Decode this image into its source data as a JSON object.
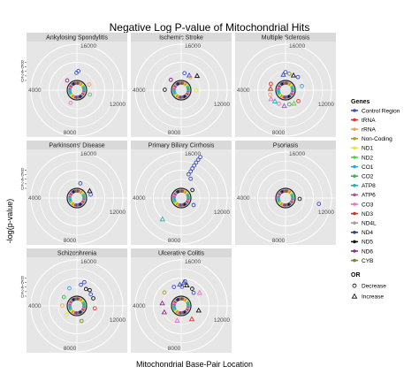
{
  "chart_data": {
    "type": "scatter",
    "coordinate_system": "polar (faceted)",
    "title": "Negative Log P-value of Mitochondrial Hits",
    "xlabel": "Mitochondrial Base-Pair Location",
    "ylabel": "-log(p-value)",
    "y_ticks": [
      0,
      2,
      4,
      6,
      8
    ],
    "ring_labels": [
      "16000",
      "4000",
      "12000",
      "8000"
    ],
    "grid": true,
    "legend_position": "right",
    "gene_legend": {
      "title": "Genes",
      "items": [
        {
          "label": "Control Region",
          "color": "#3b4cc0"
        },
        {
          "label": "tRNA",
          "color": "#e6341f"
        },
        {
          "label": "rRNA",
          "color": "#f5a35a"
        },
        {
          "label": "Non-Coding",
          "color": "#a6a028"
        },
        {
          "label": "ND1",
          "color": "#f0e030"
        },
        {
          "label": "ND2",
          "color": "#5ec94c"
        },
        {
          "label": "CO1",
          "color": "#2aa4e8"
        },
        {
          "label": "CO2",
          "color": "#3cb44b"
        },
        {
          "label": "ATP8",
          "color": "#1fb6b0"
        },
        {
          "label": "ATP6",
          "color": "#9b59b6"
        },
        {
          "label": "CO3",
          "color": "#f06ec8"
        },
        {
          "label": "ND3",
          "color": "#c0392b"
        },
        {
          "label": "ND4L",
          "color": "#a0a0a0"
        },
        {
          "label": "ND4",
          "color": "#2c3e90"
        },
        {
          "label": "ND5",
          "color": "#111111"
        },
        {
          "label": "ND6",
          "color": "#8e2a8a"
        },
        {
          "label": "CYB",
          "color": "#6b8e23"
        }
      ]
    },
    "or_legend": {
      "title": "OR",
      "items": [
        {
          "label": "Decrease",
          "shape": "circle"
        },
        {
          "label": "Increase",
          "shape": "triangle"
        }
      ]
    },
    "facets": [
      {
        "name": "Ankylosing Spondylitis",
        "points": [
          {
            "bp": 200,
            "y": 3.0,
            "gene": "Control Region",
            "or": "Decrease"
          },
          {
            "bp": 16500,
            "y": 2.2,
            "gene": "Control Region",
            "or": "Decrease"
          },
          {
            "bp": 14500,
            "y": 0.6,
            "gene": "ND6",
            "or": "Decrease"
          },
          {
            "bp": 5000,
            "y": 0.6,
            "gene": "ND2",
            "or": "Decrease"
          },
          {
            "bp": 9500,
            "y": 0.8,
            "gene": "CO3",
            "or": "Decrease"
          },
          {
            "bp": 3000,
            "y": 0.5,
            "gene": "rRNA",
            "or": "Decrease"
          }
        ]
      },
      {
        "name": "Ischemic Stroke",
        "points": [
          {
            "bp": 500,
            "y": 2.2,
            "gene": "Control Region",
            "or": "Decrease"
          },
          {
            "bp": 1300,
            "y": 2.0,
            "gene": "Control Region",
            "or": "Increase"
          },
          {
            "bp": 2200,
            "y": 4.0,
            "gene": "ND5",
            "or": "Increase"
          },
          {
            "bp": 1600,
            "y": 1.5,
            "gene": "rRNA",
            "or": "Decrease"
          },
          {
            "bp": 4200,
            "y": 1.2,
            "gene": "ND1",
            "or": "Decrease"
          },
          {
            "bp": 14500,
            "y": 1.0,
            "gene": "ND6",
            "or": "Decrease"
          },
          {
            "bp": 12500,
            "y": 1.8,
            "gene": "ND5",
            "or": "Decrease"
          }
        ]
      },
      {
        "name": "Multiple Sclerosis",
        "points": [
          {
            "bp": 0,
            "y": 2.5,
            "gene": "Control Region",
            "or": "Decrease"
          },
          {
            "bp": 16200,
            "y": 1.5,
            "gene": "Control Region",
            "or": "Increase"
          },
          {
            "bp": 600,
            "y": 2.0,
            "gene": "CYB",
            "or": "Decrease"
          },
          {
            "bp": 1300,
            "y": 2.0,
            "gene": "ND5",
            "or": "Increase"
          },
          {
            "bp": 2000,
            "y": 2.5,
            "gene": "Control Region",
            "or": "Decrease"
          },
          {
            "bp": 3500,
            "y": 2.0,
            "gene": "CO1",
            "or": "Decrease"
          },
          {
            "bp": 6000,
            "y": 2.0,
            "gene": "tRNA",
            "or": "Decrease"
          },
          {
            "bp": 6800,
            "y": 1.5,
            "gene": "ND2",
            "or": "Increase"
          },
          {
            "bp": 7600,
            "y": 1.0,
            "gene": "CO2",
            "or": "Decrease"
          },
          {
            "bp": 8500,
            "y": 1.5,
            "gene": "ATP6",
            "or": "Increase"
          },
          {
            "bp": 9500,
            "y": 1.2,
            "gene": "CO3",
            "or": "Decrease"
          },
          {
            "bp": 10300,
            "y": 1.3,
            "gene": "ATP8",
            "or": "Increase"
          },
          {
            "bp": 11000,
            "y": 2.0,
            "gene": "CO3",
            "or": "Increase"
          },
          {
            "bp": 11700,
            "y": 1.6,
            "gene": "rRNA",
            "or": "Decrease"
          },
          {
            "bp": 12700,
            "y": 1.2,
            "gene": "ND3",
            "or": "Increase"
          },
          {
            "bp": 13500,
            "y": 1.6,
            "gene": "tRNA",
            "or": "Decrease"
          }
        ]
      },
      {
        "name": "Parkinsons' Disease",
        "points": [
          {
            "bp": 600,
            "y": 1.2,
            "gene": "Control Region",
            "or": "Decrease"
          },
          {
            "bp": 2800,
            "y": 1.0,
            "gene": "ND5",
            "or": "Increase"
          },
          {
            "bp": 3500,
            "y": 0.8,
            "gene": "Control Region",
            "or": "Decrease"
          }
        ]
      },
      {
        "name": "Primary Biliary Cirrhosis",
        "points": [
          {
            "bp": 800,
            "y": 5.5,
            "gene": "Control Region",
            "or": "Decrease"
          },
          {
            "bp": 900,
            "y": 7.0,
            "gene": "Control Region",
            "or": "Decrease"
          },
          {
            "bp": 950,
            "y": 8.5,
            "gene": "Control Region",
            "or": "Decrease"
          },
          {
            "bp": 1000,
            "y": 10.0,
            "gene": "Control Region",
            "or": "Decrease"
          },
          {
            "bp": 1050,
            "y": 11.5,
            "gene": "Control Region",
            "or": "Decrease"
          },
          {
            "bp": 1100,
            "y": 13.0,
            "gene": "Control Region",
            "or": "Decrease"
          },
          {
            "bp": 1150,
            "y": 14.5,
            "gene": "Control Region",
            "or": "Decrease"
          },
          {
            "bp": 1200,
            "y": 4.0,
            "gene": "Control Region",
            "or": "Decrease"
          },
          {
            "bp": 10200,
            "y": 7.0,
            "gene": "ATP8",
            "or": "Increase"
          },
          {
            "bp": 5500,
            "y": 0.8,
            "gene": "Control Region",
            "or": "Decrease"
          },
          {
            "bp": 2500,
            "y": 0.6,
            "gene": "ND5",
            "or": "Decrease"
          }
        ]
      },
      {
        "name": "Psoriasis",
        "points": [
          {
            "bp": 4300,
            "y": 0.8,
            "gene": "ND5",
            "or": "Decrease"
          },
          {
            "bp": 4600,
            "y": 9.5,
            "gene": "Control Region",
            "or": "Decrease"
          }
        ]
      },
      {
        "name": "Schizophrenia",
        "points": [
          {
            "bp": 500,
            "y": 4.0,
            "gene": "Control Region",
            "or": "Decrease"
          },
          {
            "bp": 800,
            "y": 5.5,
            "gene": "Control Region",
            "or": "Decrease"
          },
          {
            "bp": 1300,
            "y": 3.0,
            "gene": "ND5",
            "or": "Decrease"
          },
          {
            "bp": 1800,
            "y": 3.5,
            "gene": "ND5",
            "or": "Decrease"
          },
          {
            "bp": 2300,
            "y": 2.5,
            "gene": "Control Region",
            "or": "Decrease"
          },
          {
            "bp": 3000,
            "y": 2.5,
            "gene": "ND5",
            "or": "Decrease"
          },
          {
            "bp": 4500,
            "y": 2.5,
            "gene": "tRNA",
            "or": "Decrease"
          },
          {
            "bp": 7500,
            "y": 1.5,
            "gene": "CYB",
            "or": "Decrease"
          },
          {
            "bp": 10500,
            "y": 0.6,
            "gene": "ND1",
            "or": "Decrease"
          },
          {
            "bp": 12500,
            "y": 1.0,
            "gene": "rRNA",
            "or": "Decrease"
          },
          {
            "bp": 14000,
            "y": 1.5,
            "gene": "CO2",
            "or": "Decrease"
          },
          {
            "bp": 15500,
            "y": 3.0,
            "gene": "CO1",
            "or": "Decrease"
          }
        ]
      },
      {
        "name": "Ulcerative Colitis",
        "points": [
          {
            "bp": 100,
            "y": 3.0,
            "gene": "Control Region",
            "or": "Decrease"
          },
          {
            "bp": 16400,
            "y": 4.0,
            "gene": "Control Region",
            "or": "Increase"
          },
          {
            "bp": 300,
            "y": 5.0,
            "gene": "Control Region",
            "or": "Increase"
          },
          {
            "bp": 400,
            "y": 5.5,
            "gene": "Control Region",
            "or": "Decrease"
          },
          {
            "bp": 700,
            "y": 4.0,
            "gene": "ND5",
            "or": "Increase"
          },
          {
            "bp": 1500,
            "y": 3.5,
            "gene": "ND5",
            "or": "Decrease"
          },
          {
            "bp": 2000,
            "y": 2.5,
            "gene": "Control Region",
            "or": "Decrease"
          },
          {
            "bp": 2500,
            "y": 4.5,
            "gene": "CO3",
            "or": "Increase"
          },
          {
            "bp": 4800,
            "y": 2.5,
            "gene": "ND5",
            "or": "Increase"
          },
          {
            "bp": 6500,
            "y": 2.0,
            "gene": "tRNA",
            "or": "Increase"
          },
          {
            "bp": 9000,
            "y": 1.2,
            "gene": "CO3",
            "or": "Increase"
          },
          {
            "bp": 11500,
            "y": 2.5,
            "gene": "ND6",
            "or": "Increase"
          },
          {
            "bp": 12800,
            "y": 3.0,
            "gene": "ND6",
            "or": "Increase"
          },
          {
            "bp": 14200,
            "y": 4.0,
            "gene": "Non-Coding",
            "or": "Decrease"
          },
          {
            "bp": 15600,
            "y": 3.5,
            "gene": "Control Region",
            "or": "Decrease"
          }
        ]
      }
    ]
  }
}
